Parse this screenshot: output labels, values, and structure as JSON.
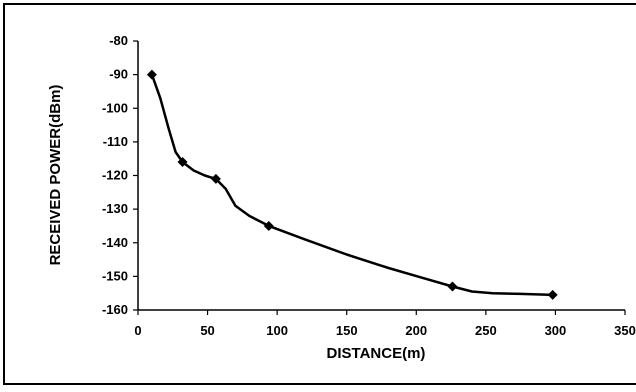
{
  "chart_data": {
    "type": "line",
    "title": "",
    "xlabel": "DISTANCE(m)",
    "ylabel": "RECEIVED POWER(dBm)",
    "xlim": [
      0,
      350
    ],
    "ylim": [
      -160,
      -80
    ],
    "x_ticks": [
      "0",
      "50",
      "100",
      "150",
      "200",
      "250",
      "300",
      "350"
    ],
    "y_ticks": [
      "-80",
      "-90",
      "-100",
      "-110",
      "-120",
      "-130",
      "-140",
      "-150",
      "-160"
    ],
    "series": [
      {
        "marked_points": [
          {
            "x": 10,
            "y": -90
          },
          {
            "x": 32,
            "y": -116
          },
          {
            "x": 56,
            "y": -121
          },
          {
            "x": 94,
            "y": -135
          },
          {
            "x": 226,
            "y": -153
          },
          {
            "x": 298,
            "y": -155.5
          }
        ],
        "curve": [
          {
            "x": 10,
            "y": -90
          },
          {
            "x": 16,
            "y": -97
          },
          {
            "x": 22,
            "y": -106
          },
          {
            "x": 27,
            "y": -113
          },
          {
            "x": 32,
            "y": -116
          },
          {
            "x": 40,
            "y": -118.5
          },
          {
            "x": 48,
            "y": -120
          },
          {
            "x": 56,
            "y": -121
          },
          {
            "x": 63,
            "y": -124
          },
          {
            "x": 70,
            "y": -129
          },
          {
            "x": 80,
            "y": -132
          },
          {
            "x": 94,
            "y": -135
          },
          {
            "x": 120,
            "y": -139
          },
          {
            "x": 150,
            "y": -143.5
          },
          {
            "x": 180,
            "y": -147.5
          },
          {
            "x": 205,
            "y": -150.5
          },
          {
            "x": 226,
            "y": -153
          },
          {
            "x": 240,
            "y": -154.5
          },
          {
            "x": 255,
            "y": -155
          },
          {
            "x": 275,
            "y": -155.2
          },
          {
            "x": 298,
            "y": -155.5
          }
        ]
      }
    ],
    "grid": false,
    "line_color": "#000000"
  }
}
